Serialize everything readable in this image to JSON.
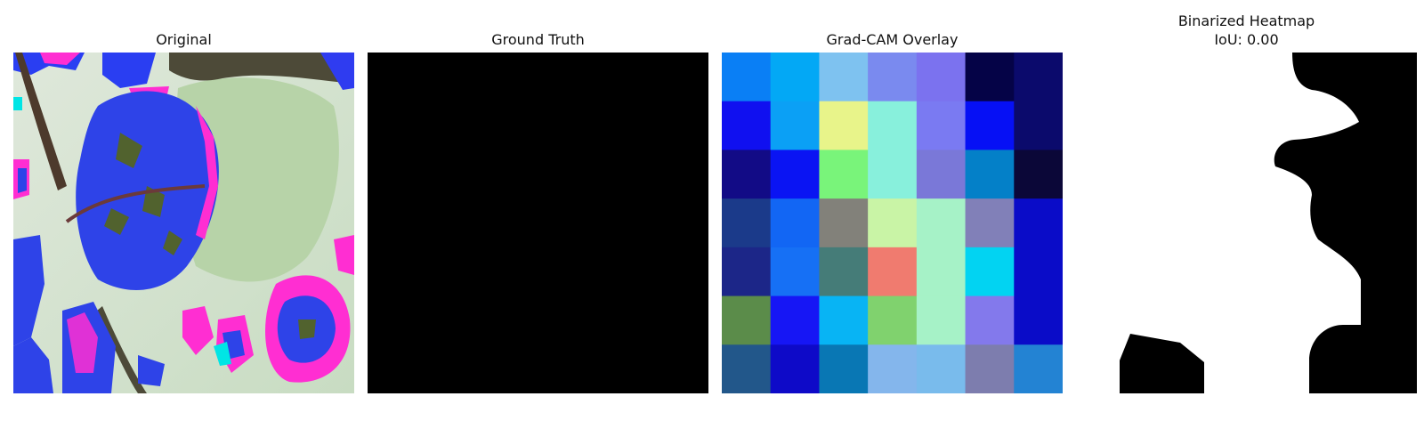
{
  "panels": {
    "original": {
      "title": "Original"
    },
    "ground_truth": {
      "title": "Ground Truth"
    },
    "gradcam": {
      "title": "Grad-CAM Overlay",
      "grid": [
        [
          "#0a7ff5",
          "#03a8f5",
          "#7ec2f0",
          "#7a8aef",
          "#7b72ef",
          "#050347",
          "#0b0a6c"
        ],
        [
          "#1010f0",
          "#0ba0f5",
          "#e8f48a",
          "#88f0dc",
          "#7a7af2",
          "#0610f5",
          "#0b0a6c"
        ],
        [
          "#120b86",
          "#0a14f3",
          "#79f47a",
          "#88f0dc",
          "#7a78d8",
          "#0480c8",
          "#0b0738"
        ],
        [
          "#1b3a8a",
          "#1266f4",
          "#82817a",
          "#c9f4a6",
          "#a6f2c7",
          "#8180b8",
          "#0a0cc8"
        ],
        [
          "#1c2688",
          "#1670f5",
          "#457c78",
          "#f07b6f",
          "#a6f2c7",
          "#02d3f2",
          "#0a0cc8"
        ],
        [
          "#5b8c4a",
          "#1616f5",
          "#08b4f4",
          "#80d26e",
          "#a6f2c7",
          "#8379ec",
          "#0a0cc8"
        ],
        [
          "#22578a",
          "#0e0ac8",
          "#0977b4",
          "#84b6ec",
          "#79bbec",
          "#7d7dae",
          "#2383d3"
        ]
      ]
    },
    "binarized": {
      "title": "Binarized Heatmap",
      "subtitle": "IoU: 0.00"
    }
  }
}
